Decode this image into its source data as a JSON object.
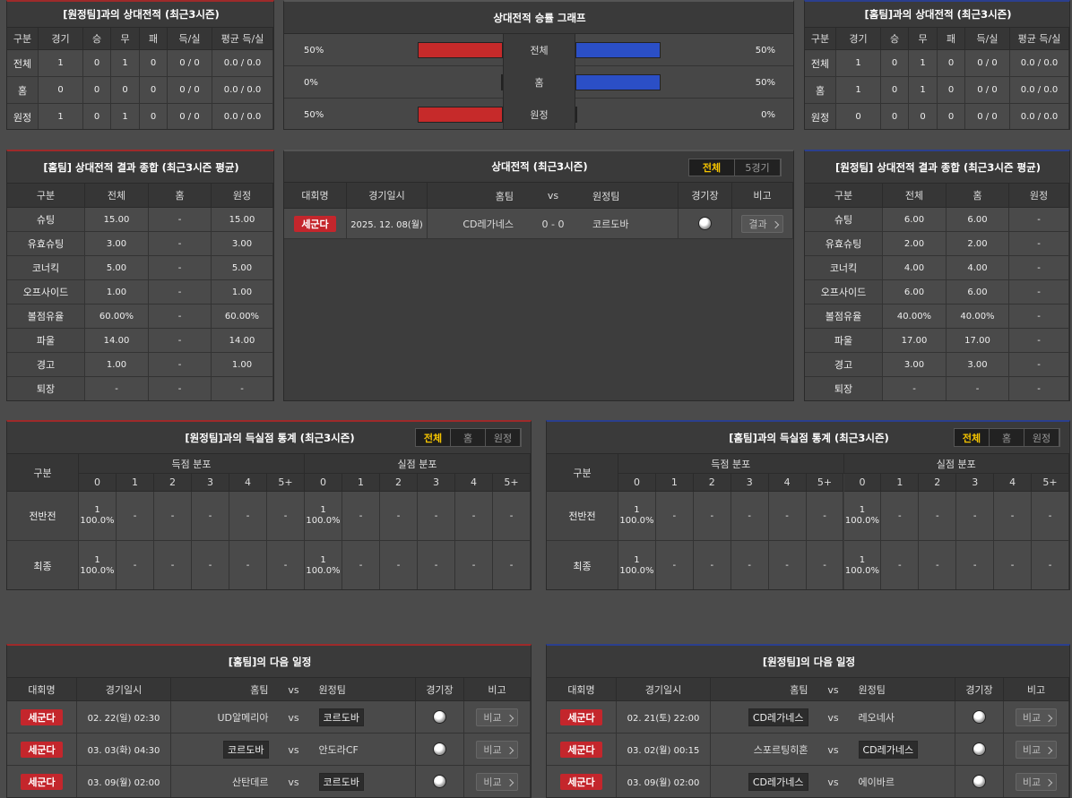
{
  "h2h_away": {
    "title": "[원정팀]과의 상대전적 (최근3시즌)",
    "columns": [
      "구분",
      "경기",
      "승",
      "무",
      "패",
      "득/실",
      "평균 득/실"
    ],
    "rows": [
      [
        "전체",
        "1",
        "0",
        "1",
        "0",
        "0 / 0",
        "0.0 / 0.0"
      ],
      [
        "홈",
        "0",
        "0",
        "0",
        "0",
        "0 / 0",
        "0.0 / 0.0"
      ],
      [
        "원정",
        "1",
        "0",
        "1",
        "0",
        "0 / 0",
        "0.0 / 0.0"
      ]
    ]
  },
  "winrate": {
    "title": "상대전적 승률 그래프",
    "left_color": "#c62a2a",
    "right_color": "#2b4fc6",
    "rows": [
      {
        "label": "전체",
        "left": {
          "value": 50,
          "label": "50%"
        },
        "right": {
          "value": 50,
          "label": "50%"
        }
      },
      {
        "label": "홈",
        "left": {
          "value": 0,
          "label": "0%"
        },
        "right": {
          "value": 50,
          "label": "50%"
        }
      },
      {
        "label": "원정",
        "left": {
          "value": 50,
          "label": "50%"
        },
        "right": {
          "value": 0,
          "label": "0%"
        }
      }
    ]
  },
  "h2h_home": {
    "title": "[홈팀]과의 상대전적 (최근3시즌)",
    "columns": [
      "구분",
      "경기",
      "승",
      "무",
      "패",
      "득/실",
      "평균 득/실"
    ],
    "rows": [
      [
        "전체",
        "1",
        "0",
        "1",
        "0",
        "0 / 0",
        "0.0 / 0.0"
      ],
      [
        "홈",
        "1",
        "0",
        "1",
        "0",
        "0 / 0",
        "0.0 / 0.0"
      ],
      [
        "원정",
        "0",
        "0",
        "0",
        "0",
        "0 / 0",
        "0.0 / 0.0"
      ]
    ]
  },
  "summary_home": {
    "title": "[홈팀] 상대전적 결과 종합 (최근3시즌 평균)",
    "columns": [
      "구분",
      "전체",
      "홈",
      "원정"
    ],
    "rows": [
      [
        "슈팅",
        "15.00",
        "-",
        "15.00"
      ],
      [
        "유효슈팅",
        "3.00",
        "-",
        "3.00"
      ],
      [
        "코너킥",
        "5.00",
        "-",
        "5.00"
      ],
      [
        "오프사이드",
        "1.00",
        "-",
        "1.00"
      ],
      [
        "볼점유율",
        "60.00%",
        "-",
        "60.00%"
      ],
      [
        "파울",
        "14.00",
        "-",
        "14.00"
      ],
      [
        "경고",
        "1.00",
        "-",
        "1.00"
      ],
      [
        "퇴장",
        "-",
        "-",
        "-"
      ]
    ]
  },
  "recent": {
    "title": "상대전적 (최근3시즌)",
    "tabs": [
      "전체",
      "5경기"
    ],
    "active_tab": 0,
    "columns": [
      "대회명",
      "경기일시",
      "홈팀",
      "vs",
      "원정팀",
      "경기장",
      "비고"
    ],
    "rows": [
      {
        "league": "세군다",
        "date": "2025. 12. 08(월)",
        "home": "CD레가네스",
        "score": "0 - 0",
        "away": "코르도바",
        "button": "결과"
      }
    ]
  },
  "summary_away": {
    "title": "[원정팀] 상대전적 결과 종합 (최근3시즌 평균)",
    "columns": [
      "구분",
      "전체",
      "홈",
      "원정"
    ],
    "rows": [
      [
        "슈팅",
        "6.00",
        "6.00",
        "-"
      ],
      [
        "유효슈팅",
        "2.00",
        "2.00",
        "-"
      ],
      [
        "코너킥",
        "4.00",
        "4.00",
        "-"
      ],
      [
        "오프사이드",
        "6.00",
        "6.00",
        "-"
      ],
      [
        "볼점유율",
        "40.00%",
        "40.00%",
        "-"
      ],
      [
        "파울",
        "17.00",
        "17.00",
        "-"
      ],
      [
        "경고",
        "3.00",
        "3.00",
        "-"
      ],
      [
        "퇴장",
        "-",
        "-",
        "-"
      ]
    ]
  },
  "goals_away": {
    "title": "[원정팀]과의 득실점 통계 (최근3시즌)",
    "tabs": [
      "전체",
      "홈",
      "원정"
    ],
    "active_tab": 0,
    "header": "구분",
    "groups": [
      "득점 분포",
      "실점 분포"
    ],
    "buckets": [
      "0",
      "1",
      "2",
      "3",
      "4",
      "5+"
    ],
    "rows": [
      {
        "label": "전반전",
        "cells": [
          {
            "count": "1",
            "pct": "100.0%"
          },
          "-",
          "-",
          "-",
          "-",
          "-",
          {
            "count": "1",
            "pct": "100.0%"
          },
          "-",
          "-",
          "-",
          "-",
          "-"
        ]
      },
      {
        "label": "최종",
        "cells": [
          {
            "count": "1",
            "pct": "100.0%"
          },
          "-",
          "-",
          "-",
          "-",
          "-",
          {
            "count": "1",
            "pct": "100.0%"
          },
          "-",
          "-",
          "-",
          "-",
          "-"
        ]
      }
    ]
  },
  "goals_home": {
    "title": "[홈팀]과의 득실점 통계 (최근3시즌)",
    "tabs": [
      "전체",
      "홈",
      "원정"
    ],
    "active_tab": 0,
    "header": "구분",
    "groups": [
      "득점 분포",
      "실점 분포"
    ],
    "buckets": [
      "0",
      "1",
      "2",
      "3",
      "4",
      "5+"
    ],
    "rows": [
      {
        "label": "전반전",
        "cells": [
          {
            "count": "1",
            "pct": "100.0%"
          },
          "-",
          "-",
          "-",
          "-",
          "-",
          {
            "count": "1",
            "pct": "100.0%"
          },
          "-",
          "-",
          "-",
          "-",
          "-"
        ]
      },
      {
        "label": "최종",
        "cells": [
          {
            "count": "1",
            "pct": "100.0%"
          },
          "-",
          "-",
          "-",
          "-",
          "-",
          {
            "count": "1",
            "pct": "100.0%"
          },
          "-",
          "-",
          "-",
          "-",
          "-"
        ]
      }
    ]
  },
  "schedule_home": {
    "title": "[홈팀]의 다음 일정",
    "columns": [
      "대회명",
      "경기일시",
      "홈팀",
      "vs",
      "원정팀",
      "경기장",
      "비고"
    ],
    "rows": [
      {
        "league": "세군다",
        "date": "02. 22(일) 02:30",
        "home": "UD알메리아",
        "vs": "vs",
        "away": "코르도바",
        "boxed": "away",
        "button": "비교"
      },
      {
        "league": "세군다",
        "date": "03. 03(화) 04:30",
        "home": "코르도바",
        "vs": "vs",
        "away": "안도라CF",
        "boxed": "home",
        "button": "비교"
      },
      {
        "league": "세군다",
        "date": "03. 09(월) 02:00",
        "home": "산탄데르",
        "vs": "vs",
        "away": "코르도바",
        "boxed": "away",
        "button": "비교"
      }
    ]
  },
  "schedule_away": {
    "title": "[원정팀]의 다음 일정",
    "columns": [
      "대회명",
      "경기일시",
      "홈팀",
      "vs",
      "원정팀",
      "경기장",
      "비고"
    ],
    "rows": [
      {
        "league": "세군다",
        "date": "02. 21(토) 22:00",
        "home": "CD레가네스",
        "vs": "vs",
        "away": "레오네사",
        "boxed": "home",
        "button": "비교"
      },
      {
        "league": "세군다",
        "date": "03. 02(월) 00:15",
        "home": "스포르팅히혼",
        "vs": "vs",
        "away": "CD레가네스",
        "boxed": "away",
        "button": "비교"
      },
      {
        "league": "세군다",
        "date": "03. 09(월) 02:00",
        "home": "CD레가네스",
        "vs": "vs",
        "away": "에이바르",
        "boxed": "home",
        "button": "비교"
      }
    ]
  }
}
